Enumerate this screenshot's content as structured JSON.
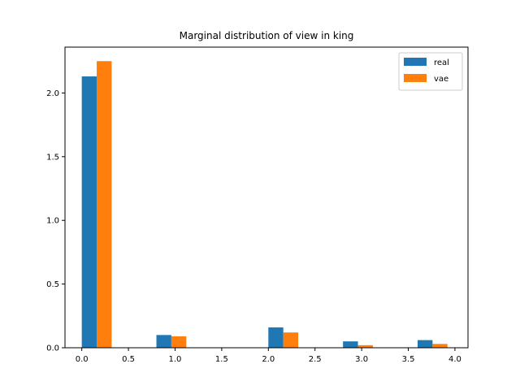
{
  "chart_data": {
    "type": "bar",
    "title": "Marginal distribution of view in king",
    "xlabel": "",
    "ylabel": "",
    "xlim": [
      -0.18,
      4.14
    ],
    "ylim": [
      0,
      2.36
    ],
    "x_ticks": [
      "0.0",
      "0.5",
      "1.0",
      "1.5",
      "2.0",
      "2.5",
      "3.0",
      "3.5",
      "4.0"
    ],
    "y_ticks": [
      "0.0",
      "0.5",
      "1.0",
      "1.5",
      "2.0"
    ],
    "grid": false,
    "legend": {
      "position": "top-right"
    },
    "bin_width": 0.16,
    "series": [
      {
        "name": "real",
        "color": "#1f77b4",
        "x": [
          0.0,
          0.8,
          2.0,
          2.8,
          3.6
        ],
        "values": [
          2.13,
          0.1,
          0.16,
          0.05,
          0.06
        ]
      },
      {
        "name": "vae",
        "color": "#ff7f0e",
        "x": [
          0.16,
          0.96,
          2.16,
          2.96,
          3.76
        ],
        "values": [
          2.25,
          0.09,
          0.12,
          0.02,
          0.03
        ]
      }
    ]
  }
}
